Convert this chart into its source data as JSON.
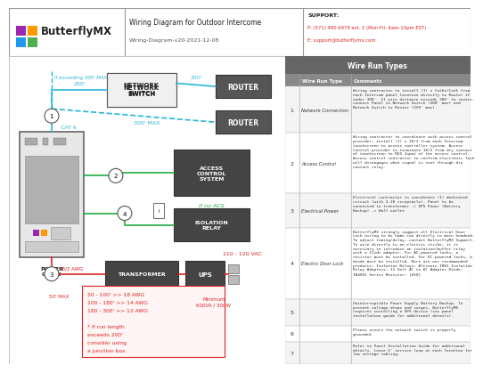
{
  "title": "Wiring Diagram for Outdoor Intercome",
  "subtitle": "Wiring-Diagram-v20-2021-12-08",
  "support_label": "SUPPORT:",
  "support_phone": "P: (571) 480.6979 ext. 2 (Mon-Fri, 6am-10pm EST)",
  "support_email": "E: support@butterflymx.com",
  "bg_color": "#ffffff",
  "cyan_color": "#29b6d8",
  "green_color": "#22aa44",
  "red_color": "#dd2222",
  "dark_color": "#222222",
  "box_bg": "#444444",
  "router_bg": "#555555",
  "wire_run_rows": [
    {
      "num": "1",
      "type": "Network Connection",
      "comment": "Wiring contractor to install (1) x Cat6e/Cat6 from each Intercom panel location directly to Router if under 300'. If wire distance exceeds 300' to router, connect Panel to Network Switch (300' max) and Network Switch to Router (250' max)."
    },
    {
      "num": "2",
      "type": "Access Control",
      "comment": "Wiring contractor to coordinate with access control provider, install (1) x 18/2 from each Intercom touchscreen to access controller system. Access Control provider to terminate 18/2 from dry contact of touchscreen to REX Input of the access control. Access control contractor to confirm electronic lock will disengages when signal is sent through dry contact relay."
    },
    {
      "num": "3",
      "type": "Electrical Power",
      "comment": "Electrical contractor to coordinate (1) dedicated circuit (with 3-20 receptacle). Panel to be connected to transformer -> UPS Power (Battery Backup) -> Wall outlet"
    },
    {
      "num": "4",
      "type": "Electric Door Lock",
      "comment": "ButterflyMX strongly suggest all Electrical Door Lock wiring to be home-run directly to main headend. To adjust timing/delay, contact ButterflyMX Support. To wire directly to an electric strike, it is necessary to introduce an isolation/buffer relay with a 12vdc adapter. For AC-powered locks, a resistor must be installed. For DC-powered locks, a diode must be installed. Here are our recommended products: Isolation Relays: Altronix IR65 Isolation Relay Adapters: 12 Volt AC to DC Adapter Diode: 1N4001 Series Resistor: [450]"
    },
    {
      "num": "5",
      "type": "",
      "comment": "Uninterruptible Power Supply Battery Backup. To prevent voltage drops and surges, ButterflyMX requires installing a UPS device (see panel installation guide for additional details)."
    },
    {
      "num": "6",
      "type": "",
      "comment": "Please ensure the network switch is properly grounded."
    },
    {
      "num": "7",
      "type": "",
      "comment": "Refer to Panel Installation Guide for additional details. Leave 6' service loop at each location for low voltage cabling."
    }
  ]
}
